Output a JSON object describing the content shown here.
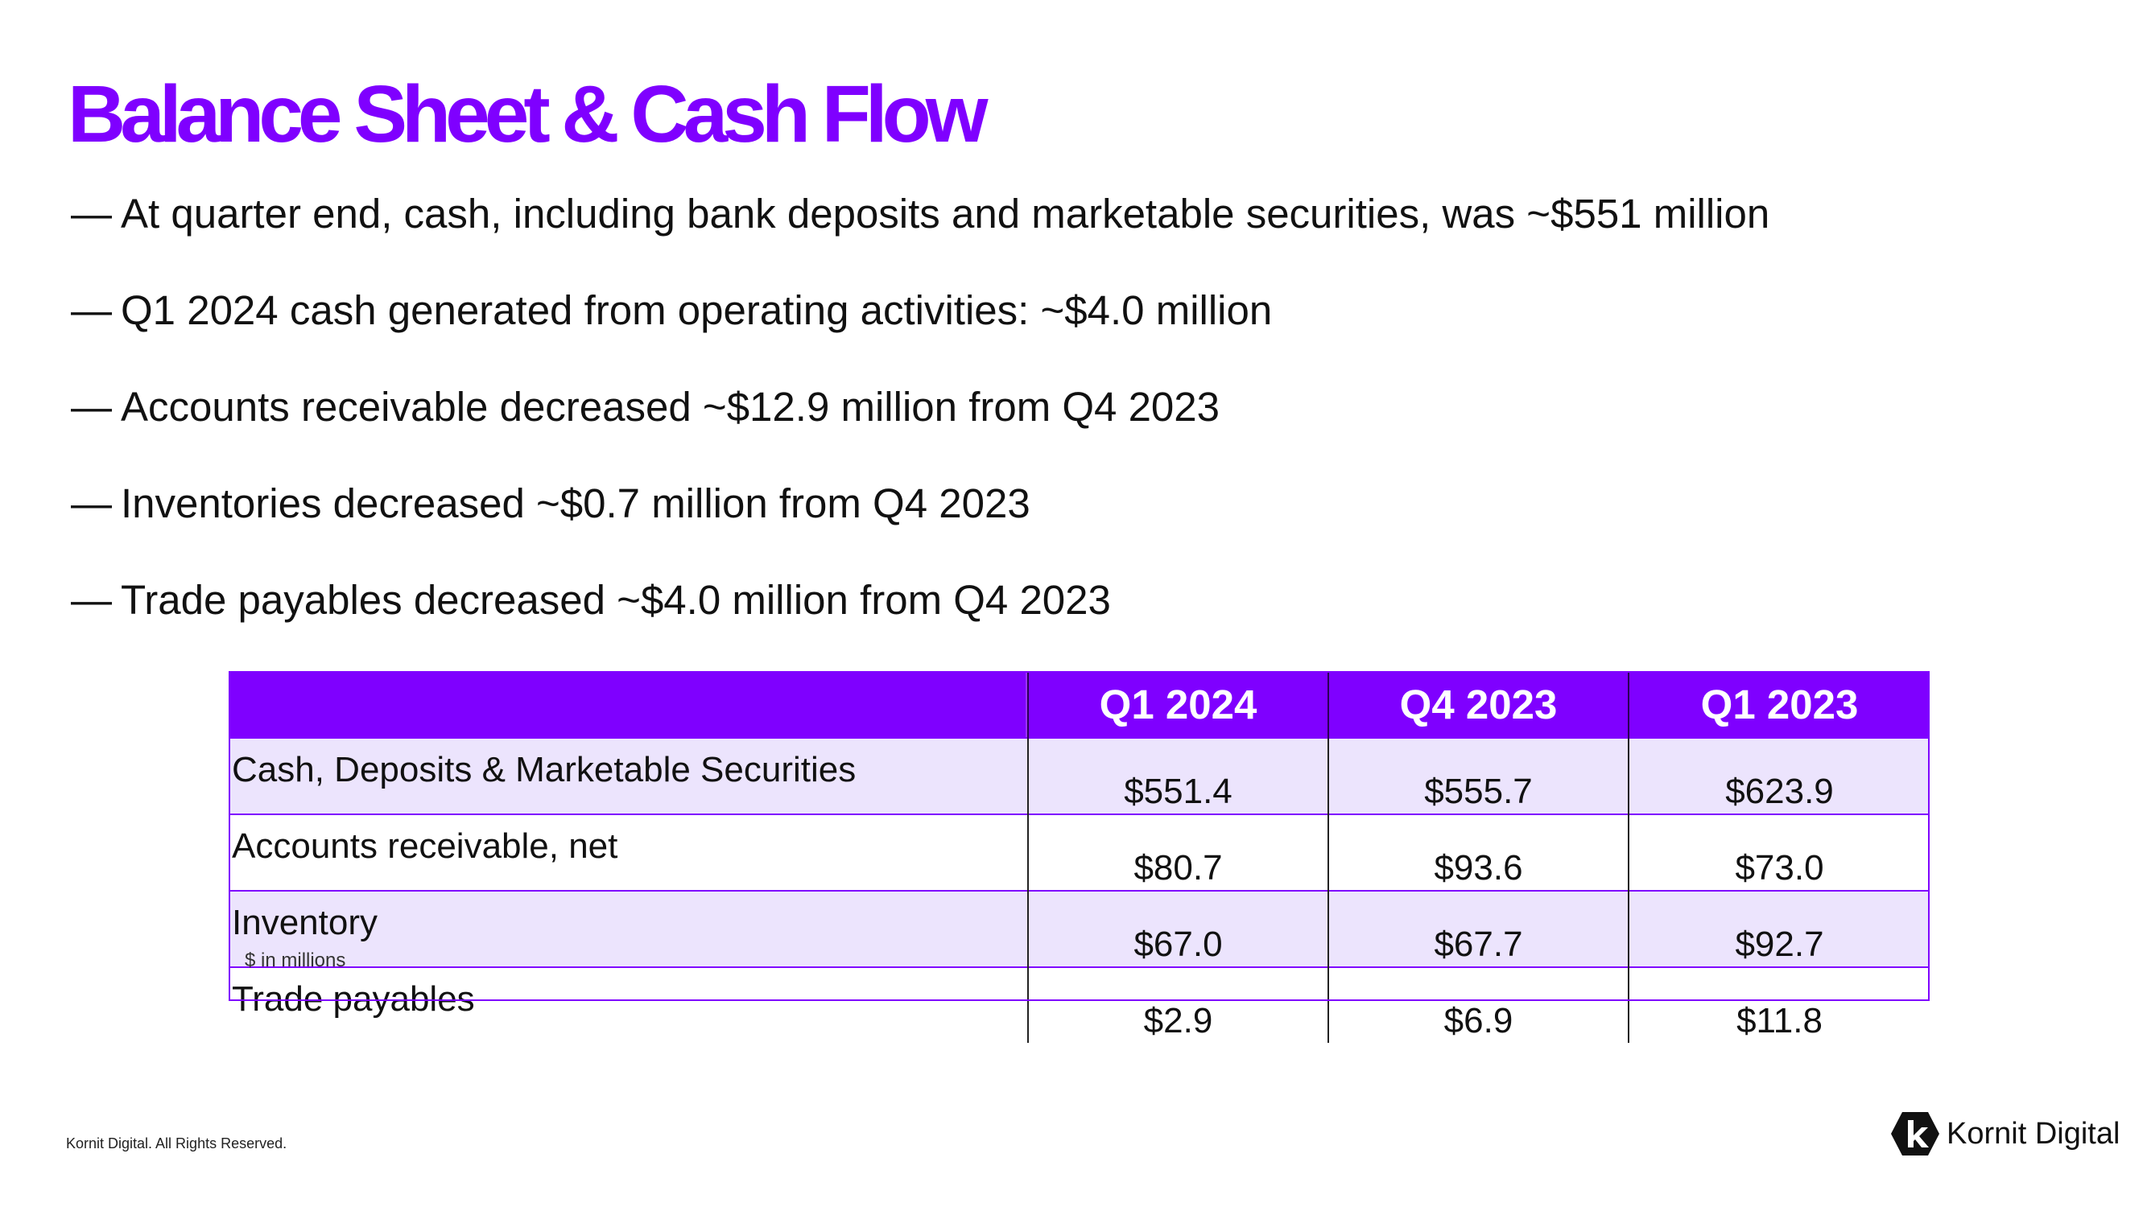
{
  "title": "Balance Sheet & Cash Flow",
  "bullets": [
    {
      "dash": "—",
      "text": "At quarter end, cash, including bank deposits and marketable securities, was ~$551 million"
    },
    {
      "dash": "—",
      "text": "Q1 2024 cash generated from operating activities: ~$4.0 million"
    },
    {
      "dash": "—",
      "text": "Accounts receivable decreased ~$12.9 million from Q4 2023"
    },
    {
      "dash": "—",
      "text": "Inventories decreased ~$0.7 million from Q4 2023"
    },
    {
      "dash": "—",
      "text": "Trade payables decreased ~$4.0 million from Q4 2023"
    }
  ],
  "table": {
    "columns": [
      "",
      "Q1 2024",
      "Q4 2023",
      "Q1 2023"
    ],
    "rows": [
      {
        "label": "Cash, Deposits & Marketable Securities",
        "values": [
          "$551.4",
          "$555.7",
          "$623.9"
        ]
      },
      {
        "label": "Accounts receivable, net",
        "values": [
          "$80.7",
          "$93.6",
          "$73.0"
        ]
      },
      {
        "label": "Inventory",
        "values": [
          "$67.0",
          "$67.7",
          "$92.7"
        ]
      },
      {
        "label": "Trade payables",
        "values": [
          "$2.9",
          "$6.9",
          "$11.8"
        ]
      }
    ],
    "note": "$ in millions"
  },
  "footer": {
    "copyright": "Kornit Digital. All Rights Reserved."
  },
  "logo": {
    "text": "Kornit Digital",
    "icon": "kornit-k-icon"
  },
  "colors": {
    "brand": "#7f00ff",
    "row_shade": "#ece4fd"
  }
}
